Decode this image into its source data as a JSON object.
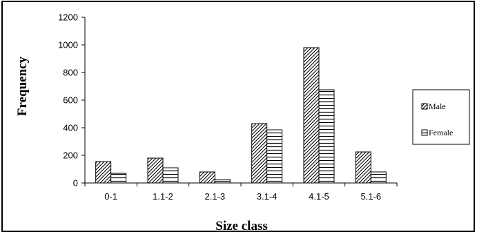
{
  "chart_data": {
    "type": "bar",
    "title": "",
    "xlabel": "Size class",
    "ylabel": "Frequency",
    "categories": [
      "0-1",
      "1.1-2",
      "2.1-3",
      "3.1-4",
      "4.1-5",
      "5.1-6"
    ],
    "series": [
      {
        "name": "Male",
        "values": [
          155,
          180,
          80,
          430,
          980,
          225
        ],
        "fill": "diagonal-hatch"
      },
      {
        "name": "Female",
        "values": [
          70,
          110,
          25,
          385,
          675,
          80
        ],
        "fill": "horizontal-hatch"
      }
    ],
    "ylim": [
      0,
      1200
    ],
    "yticks": [
      0,
      200,
      400,
      600,
      800,
      1000,
      1200
    ],
    "grid": false,
    "legend_position": "right",
    "colors": {
      "bar_stroke": "#000000",
      "hatch": "#000000",
      "background": "#ffffff"
    }
  }
}
